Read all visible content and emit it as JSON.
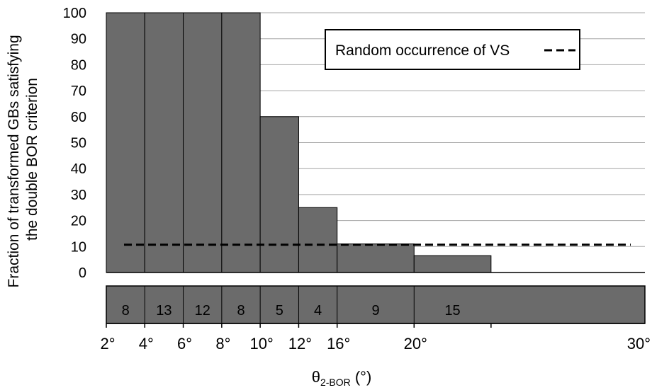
{
  "chart_data": {
    "type": "bar",
    "ylabel_lines": [
      "Fraction of transformed GBs satisfying",
      "the double BOR criterion"
    ],
    "xlabel": {
      "main": "θ",
      "sub": "2-BOR",
      "unit": " (°)"
    },
    "ylim": [
      0,
      100
    ],
    "yticks": [
      0,
      10,
      20,
      30,
      40,
      50,
      60,
      70,
      80,
      90,
      100
    ],
    "x_edges": [
      2,
      4,
      6,
      8,
      10,
      12,
      16,
      20,
      30
    ],
    "x_edge_labels": [
      "2°",
      "4°",
      "6°",
      "8°",
      "10°",
      "12°",
      "16°",
      "20°",
      "30°"
    ],
    "bins": [
      {
        "from": 2,
        "to": 4,
        "value": 100,
        "count": "8"
      },
      {
        "from": 4,
        "to": 6,
        "value": 100,
        "count": "13"
      },
      {
        "from": 6,
        "to": 8,
        "value": 100,
        "count": "12"
      },
      {
        "from": 8,
        "to": 10,
        "value": 100,
        "count": "8"
      },
      {
        "from": 10,
        "to": 12,
        "value": 60,
        "count": "5"
      },
      {
        "from": 12,
        "to": 16,
        "value": 25,
        "count": "4"
      },
      {
        "from": 16,
        "to": 20,
        "value": 11,
        "count": "9"
      },
      {
        "from": 20,
        "to": 30,
        "value": 6.5,
        "count": "15"
      }
    ],
    "reference_line": {
      "name": "Random occurrence of VS",
      "value": 10.7
    },
    "grid": true,
    "legend_position": "top-right",
    "colors": {
      "bar": "#6b6b6b",
      "bar_edge": "#000000",
      "grid": "#a6a6a6",
      "reference": "#000000"
    }
  }
}
